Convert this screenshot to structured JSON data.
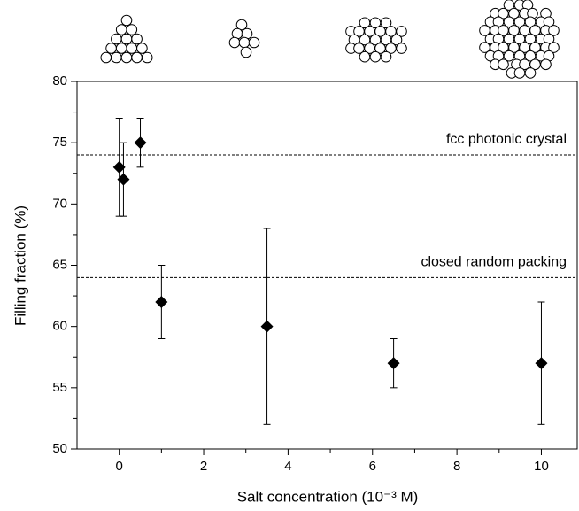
{
  "chart_data": {
    "type": "scatter",
    "x_label": "Salt concentration (10⁻³ M)",
    "y_label": "Filling fraction (%)",
    "x": [
      0,
      0.1,
      0.5,
      1,
      3.5,
      6.5,
      10
    ],
    "values": [
      73,
      72,
      75,
      62,
      60,
      57,
      57
    ],
    "errors": [
      4,
      3,
      2,
      3,
      8,
      2,
      5
    ],
    "color": "#000000",
    "xlim": [
      -1,
      10.85
    ],
    "xticks": [
      0,
      2,
      4,
      6,
      8,
      10
    ],
    "ylim": [
      50,
      80
    ],
    "yticks": [
      50,
      55,
      60,
      65,
      70,
      75,
      80
    ],
    "reference_lines": [
      {
        "value": 74,
        "label": "fcc photonic crystal"
      },
      {
        "value": 64,
        "label": "closed random packing"
      }
    ]
  }
}
